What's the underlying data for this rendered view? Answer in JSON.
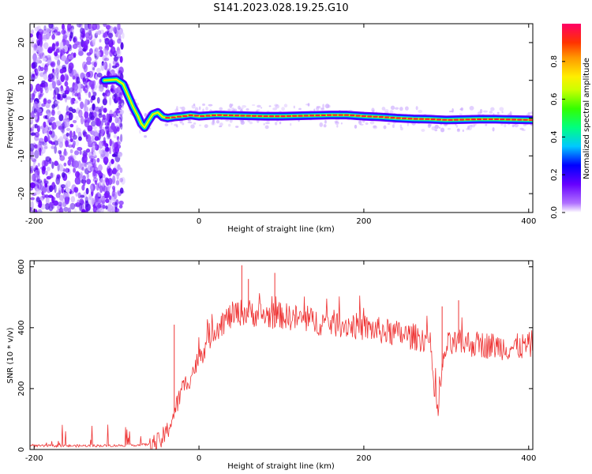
{
  "figure": {
    "title": "S141.2023.028.19.25.G10"
  },
  "chart_data": [
    {
      "type": "heatmap",
      "xlabel": "Height of straight line (km)",
      "ylabel": "Frequency (Hz)",
      "xlim": [
        -205,
        405
      ],
      "ylim": [
        -25,
        25
      ],
      "xticks": [
        -200,
        0,
        200,
        400
      ],
      "yticks": [
        -20,
        -10,
        0,
        10,
        20
      ],
      "grid": false,
      "colorbar": {
        "label": "Normalized spectral amplitude",
        "range": [
          0,
          1
        ],
        "ticks": [
          0.0,
          0.2,
          0.4,
          0.6,
          0.8
        ]
      },
      "noise_region_x": [
        -205,
        -92
      ],
      "ridge": {
        "x": [
          -205,
          -130,
          -115,
          -100,
          -92,
          -86,
          -80,
          -74,
          -70,
          -66,
          -62,
          -56,
          -50,
          -44,
          -38,
          -30,
          -20,
          -10,
          0,
          20,
          40,
          60,
          80,
          100,
          120,
          140,
          160,
          180,
          200,
          220,
          240,
          260,
          280,
          300,
          320,
          340,
          360,
          380,
          405
        ],
        "y": [
          null,
          null,
          10,
          10.2,
          9,
          6,
          3,
          0.5,
          -1.5,
          -2.5,
          -1,
          1,
          1.5,
          0.3,
          0,
          0.3,
          0.5,
          0.8,
          0.5,
          0.8,
          0.7,
          0.6,
          0.5,
          0.5,
          0.6,
          0.7,
          0.8,
          0.8,
          0.5,
          0.3,
          0,
          -0.2,
          -0.3,
          -0.5,
          -0.4,
          -0.3,
          -0.3,
          -0.4,
          -0.5
        ]
      }
    },
    {
      "type": "line",
      "xlabel": "Height of straight line (km)",
      "ylabel": "SNR (10 * v/v)",
      "xlim": [
        -205,
        405
      ],
      "ylim": [
        0,
        620
      ],
      "xticks": [
        -200,
        0,
        200,
        400
      ],
      "yticks": [
        0,
        200,
        400,
        600
      ],
      "grid": false,
      "color": "#ee3333",
      "series": [
        {
          "x": [
            -205,
            -150,
            -100,
            -70,
            -50,
            -40,
            -30,
            -20,
            -10,
            0,
            10,
            20,
            30,
            40,
            50,
            60,
            70,
            80,
            90,
            100,
            120,
            140,
            160,
            180,
            200,
            220,
            240,
            260,
            280,
            285,
            290,
            295,
            300,
            320,
            340,
            360,
            380,
            400,
            405
          ],
          "values": [
            12,
            12,
            13,
            15,
            20,
            50,
            120,
            200,
            240,
            300,
            360,
            400,
            420,
            440,
            450,
            450,
            445,
            440,
            440,
            440,
            430,
            420,
            415,
            410,
            400,
            390,
            380,
            370,
            360,
            200,
            120,
            260,
            340,
            350,
            345,
            340,
            335,
            340,
            350
          ]
        }
      ],
      "spikes": [
        {
          "x": -30,
          "value": 410
        },
        {
          "x": 52,
          "value": 605
        },
        {
          "x": 60,
          "value": 560
        },
        {
          "x": 92,
          "value": 580
        },
        {
          "x": 295,
          "value": 470
        },
        {
          "x": 315,
          "value": 490
        }
      ]
    }
  ]
}
